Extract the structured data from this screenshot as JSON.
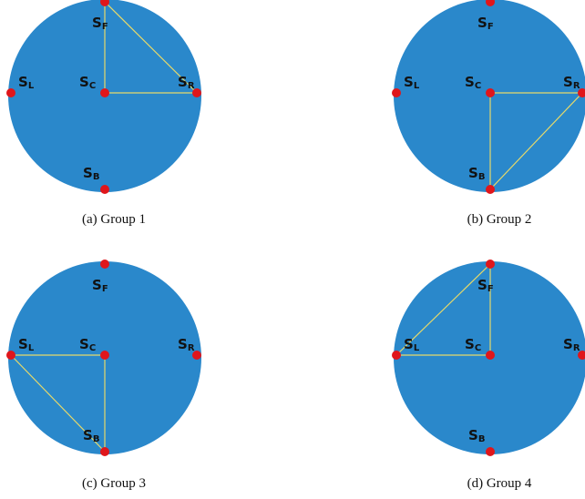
{
  "panels": [
    {
      "caption": "(a) Group 1",
      "sensors": [
        {
          "id": "F",
          "letter": "S",
          "sub": "F"
        },
        {
          "id": "L",
          "letter": "S",
          "sub": "L"
        },
        {
          "id": "C",
          "letter": "S",
          "sub": "C"
        },
        {
          "id": "R",
          "letter": "S",
          "sub": "R"
        },
        {
          "id": "B",
          "letter": "S",
          "sub": "B"
        }
      ],
      "triangle": [
        "C",
        "F",
        "R"
      ]
    },
    {
      "caption": "(b) Group 2",
      "sensors": [
        {
          "id": "F",
          "letter": "S",
          "sub": "F"
        },
        {
          "id": "L",
          "letter": "S",
          "sub": "L"
        },
        {
          "id": "C",
          "letter": "S",
          "sub": "C"
        },
        {
          "id": "R",
          "letter": "S",
          "sub": "R"
        },
        {
          "id": "B",
          "letter": "S",
          "sub": "B"
        }
      ],
      "triangle": [
        "C",
        "R",
        "B"
      ]
    },
    {
      "caption": "(c) Group 3",
      "sensors": [
        {
          "id": "F",
          "letter": "S",
          "sub": "F"
        },
        {
          "id": "L",
          "letter": "S",
          "sub": "L"
        },
        {
          "id": "C",
          "letter": "S",
          "sub": "C"
        },
        {
          "id": "R",
          "letter": "S",
          "sub": "R"
        },
        {
          "id": "B",
          "letter": "S",
          "sub": "B"
        }
      ],
      "triangle": [
        "C",
        "L",
        "B"
      ]
    },
    {
      "caption": "(d) Group 4",
      "sensors": [
        {
          "id": "F",
          "letter": "S",
          "sub": "F"
        },
        {
          "id": "L",
          "letter": "S",
          "sub": "L"
        },
        {
          "id": "C",
          "letter": "S",
          "sub": "C"
        },
        {
          "id": "R",
          "letter": "S",
          "sub": "R"
        },
        {
          "id": "B",
          "letter": "S",
          "sub": "B"
        }
      ],
      "triangle": [
        "C",
        "L",
        "F"
      ]
    }
  ],
  "colors": {
    "disc": "#2a88cb",
    "sensor": "#e0161b",
    "triangle": "#e6d96a"
  }
}
